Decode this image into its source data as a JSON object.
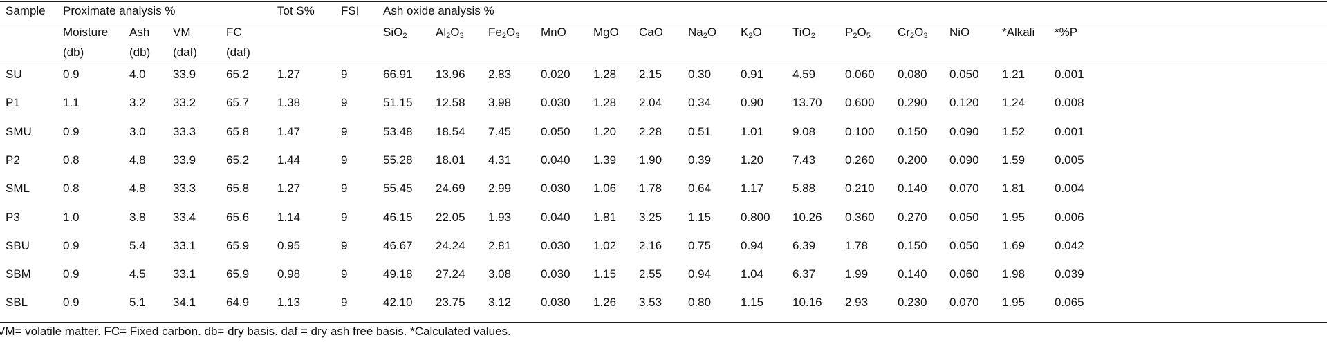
{
  "header": {
    "sample": "Sample",
    "proximate": "Proximate analysis %",
    "tots": "Tot S%",
    "fsi": "FSI",
    "ash_oxide": "Ash oxide analysis %"
  },
  "subheaders": {
    "moisture": "Moisture",
    "ash": "Ash",
    "vm": "VM",
    "fc": "FC",
    "sio2": {
      "main": "SiO",
      "sub": "2"
    },
    "al2o3": {
      "a": "Al",
      "s1": "2",
      "b": "O",
      "s2": "3"
    },
    "fe2o3": {
      "a": "Fe",
      "s1": "2",
      "b": "O",
      "s2": "3"
    },
    "mno": "MnO",
    "mgo": "MgO",
    "cao": "CaO",
    "na2o": {
      "a": "Na",
      "s": "2",
      "b": "O"
    },
    "k2o": {
      "a": "K",
      "s": "2",
      "b": "O"
    },
    "tio2": {
      "main": "TiO",
      "sub": "2"
    },
    "p2o5": {
      "a": "P",
      "s1": "2",
      "b": "O",
      "s2": "5"
    },
    "cr2o3": {
      "a": "Cr",
      "s1": "2",
      "b": "O",
      "s2": "3"
    },
    "nio": "NiO",
    "alkali": "*Alkali",
    "p": "*%P",
    "moisture_basis": "(db)",
    "ash_basis": "(db)",
    "vm_basis": "(daf)",
    "fc_basis": "(daf)"
  },
  "rows": [
    [
      "SU",
      "0.9",
      "4.0",
      "33.9",
      "65.2",
      "1.27",
      "9",
      "66.91",
      "13.96",
      "2.83",
      "0.020",
      "1.28",
      "2.15",
      "0.30",
      "0.91",
      "4.59",
      "0.060",
      "0.080",
      "0.050",
      "1.21",
      "0.001"
    ],
    [
      "P1",
      "1.1",
      "3.2",
      "33.2",
      "65.7",
      "1.38",
      "9",
      "51.15",
      "12.58",
      "3.98",
      "0.030",
      "1.28",
      "2.04",
      "0.34",
      "0.90",
      "13.70",
      "0.600",
      "0.290",
      "0.120",
      "1.24",
      "0.008"
    ],
    [
      "SMU",
      "0.9",
      "3.0",
      "33.3",
      "65.8",
      "1.47",
      "9",
      "53.48",
      "18.54",
      "7.45",
      "0.050",
      "1.20",
      "2.28",
      "0.51",
      "1.01",
      "9.08",
      "0.100",
      "0.150",
      "0.090",
      "1.52",
      "0.001"
    ],
    [
      "P2",
      "0.8",
      "4.8",
      "33.9",
      "65.2",
      "1.44",
      "9",
      "55.28",
      "18.01",
      "4.31",
      "0.040",
      "1.39",
      "1.90",
      "0.39",
      "1.20",
      "7.43",
      "0.260",
      "0.200",
      "0.090",
      "1.59",
      "0.005"
    ],
    [
      "SML",
      "0.8",
      "4.8",
      "33.3",
      "65.8",
      "1.27",
      "9",
      "55.45",
      "24.69",
      "2.99",
      "0.030",
      "1.06",
      "1.78",
      "0.64",
      "1.17",
      "5.88",
      "0.210",
      "0.140",
      "0.070",
      "1.81",
      "0.004"
    ],
    [
      "P3",
      "1.0",
      "3.8",
      "33.4",
      "65.6",
      "1.14",
      "9",
      "46.15",
      "22.05",
      "1.93",
      "0.040",
      "1.81",
      "3.25",
      "1.15",
      "0.800",
      "10.26",
      "0.360",
      "0.270",
      "0.050",
      "1.95",
      "0.006"
    ],
    [
      "SBU",
      "0.9",
      "5.4",
      "33.1",
      "65.9",
      "0.95",
      "9",
      "46.67",
      "24.24",
      "2.81",
      "0.030",
      "1.02",
      "2.16",
      "0.75",
      "0.94",
      "6.39",
      "1.78",
      "0.150",
      "0.050",
      "1.69",
      "0.042"
    ],
    [
      "SBM",
      "0.9",
      "4.5",
      "33.1",
      "65.9",
      "0.98",
      "9",
      "49.18",
      "27.24",
      "3.08",
      "0.030",
      "1.15",
      "2.55",
      "0.94",
      "1.04",
      "6.37",
      "1.99",
      "0.140",
      "0.060",
      "1.98",
      "0.039"
    ],
    [
      "SBL",
      "0.9",
      "5.1",
      "34.1",
      "64.9",
      "1.13",
      "9",
      "42.10",
      "23.75",
      "3.12",
      "0.030",
      "1.26",
      "3.53",
      "0.80",
      "1.15",
      "10.16",
      "2.93",
      "0.230",
      "0.070",
      "1.95",
      "0.065"
    ]
  ],
  "footnote": "VM= volatile matter. FC= Fixed carbon. db= dry basis. daf = dry ash free basis. *Calculated values."
}
